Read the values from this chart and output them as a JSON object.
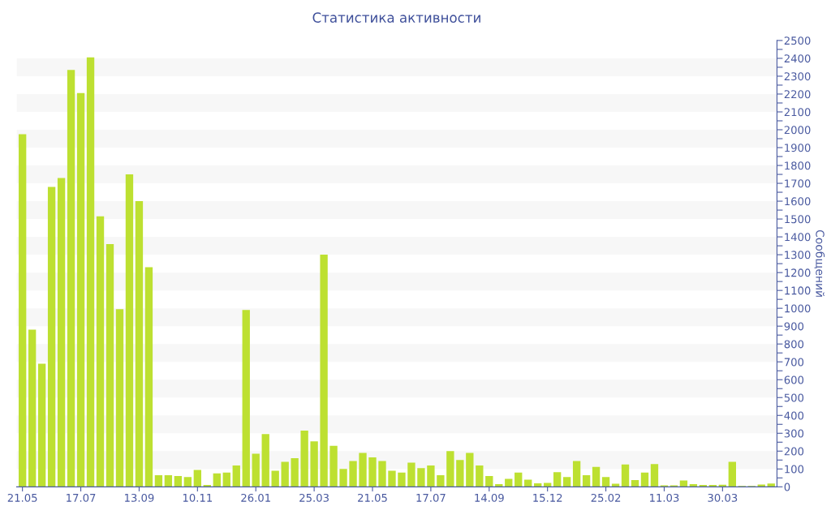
{
  "chart_data": {
    "type": "bar",
    "title": "Статистика активности",
    "ylabel": "Сообщений",
    "categories": [
      "21.05",
      null,
      null,
      null,
      null,
      null,
      "17.07",
      null,
      null,
      null,
      null,
      null,
      "13.09",
      null,
      null,
      null,
      null,
      null,
      "10.11",
      null,
      null,
      null,
      null,
      null,
      "26.01",
      null,
      null,
      null,
      null,
      null,
      "25.03",
      null,
      null,
      null,
      null,
      null,
      "21.05",
      null,
      null,
      null,
      null,
      null,
      "17.07",
      null,
      null,
      null,
      null,
      null,
      "14.09",
      null,
      null,
      null,
      null,
      null,
      "15.12",
      null,
      null,
      null,
      null,
      null,
      "25.02",
      null,
      null,
      null,
      null,
      null,
      "11.03",
      null,
      null,
      null,
      null,
      null,
      "30.03",
      null,
      null,
      null,
      null,
      null
    ],
    "values": [
      1975,
      880,
      690,
      1680,
      1730,
      2335,
      2205,
      2405,
      1515,
      1360,
      995,
      1750,
      1600,
      1230,
      65,
      65,
      60,
      55,
      95,
      10,
      75,
      80,
      120,
      990,
      185,
      295,
      90,
      140,
      160,
      315,
      255,
      1300,
      230,
      100,
      145,
      190,
      165,
      145,
      90,
      80,
      135,
      105,
      120,
      65,
      200,
      150,
      190,
      120,
      60,
      15,
      45,
      80,
      40,
      20,
      22,
      82,
      55,
      145,
      65,
      112,
      55,
      17,
      125,
      38,
      80,
      128,
      8,
      8,
      36,
      15,
      10,
      10,
      12,
      140,
      5,
      5,
      13,
      18
    ],
    "color": "#bde031",
    "ylim": [
      0,
      2500
    ],
    "yticks": [
      0,
      {
        "value": 50,
        "label": null
      },
      100,
      {
        "value": 150,
        "label": null
      },
      200,
      {
        "value": 250,
        "label": null
      },
      300,
      {
        "value": 350,
        "label": null
      },
      400,
      {
        "value": 450,
        "label": null
      },
      500,
      {
        "value": 550,
        "label": null
      },
      600,
      {
        "value": 650,
        "label": null
      },
      700,
      {
        "value": 750,
        "label": null
      },
      800,
      {
        "value": 850,
        "label": null
      },
      900,
      {
        "value": 950,
        "label": null
      },
      1000,
      {
        "value": 1050,
        "label": null
      },
      1100,
      {
        "value": 1150,
        "label": null
      },
      1200,
      {
        "value": 1250,
        "label": null
      },
      1300,
      {
        "value": 1350,
        "label": null
      },
      1400,
      {
        "value": 1450,
        "label": null
      },
      1500,
      {
        "value": 1550,
        "label": null
      },
      1600,
      {
        "value": 1650,
        "label": null
      },
      1700,
      {
        "value": 1750,
        "label": null
      },
      1800,
      {
        "value": 1850,
        "label": null
      },
      1900,
      {
        "value": 1950,
        "label": null
      },
      2000,
      {
        "value": 2050,
        "label": null
      },
      2100,
      {
        "value": 2150,
        "label": null
      },
      2200,
      {
        "value": 2250,
        "label": null
      },
      2300,
      {
        "value": 2350,
        "label": null
      },
      2400,
      {
        "value": 2450,
        "label": null
      },
      2500
    ],
    "bands": [
      {
        "axis": "y",
        "from": 100,
        "to": 200,
        "color": "#f7f7f7"
      },
      {
        "axis": "y",
        "from": 300,
        "to": 400,
        "color": "#f7f7f7"
      },
      {
        "axis": "y",
        "from": 500,
        "to": 600,
        "color": "#f7f7f7"
      },
      {
        "axis": "y",
        "from": 700,
        "to": 800,
        "color": "#f7f7f7"
      },
      {
        "axis": "y",
        "from": 900,
        "to": 1000,
        "color": "#f7f7f7"
      },
      {
        "axis": "y",
        "from": 1100,
        "to": 1200,
        "color": "#f7f7f7"
      },
      {
        "axis": "y",
        "from": 1300,
        "to": 1400,
        "color": "#f7f7f7"
      },
      {
        "axis": "y",
        "from": 1500,
        "to": 1600,
        "color": "#f7f7f7"
      },
      {
        "axis": "y",
        "from": 1700,
        "to": 1800,
        "color": "#f7f7f7"
      },
      {
        "axis": "y",
        "from": 1900,
        "to": 2000,
        "color": "#f7f7f7"
      },
      {
        "axis": "y",
        "from": 2100,
        "to": 2200,
        "color": "#f7f7f7"
      },
      {
        "axis": "y",
        "from": 2300,
        "to": 2400,
        "color": "#f7f7f7"
      }
    ],
    "grid": false,
    "legend": false
  }
}
